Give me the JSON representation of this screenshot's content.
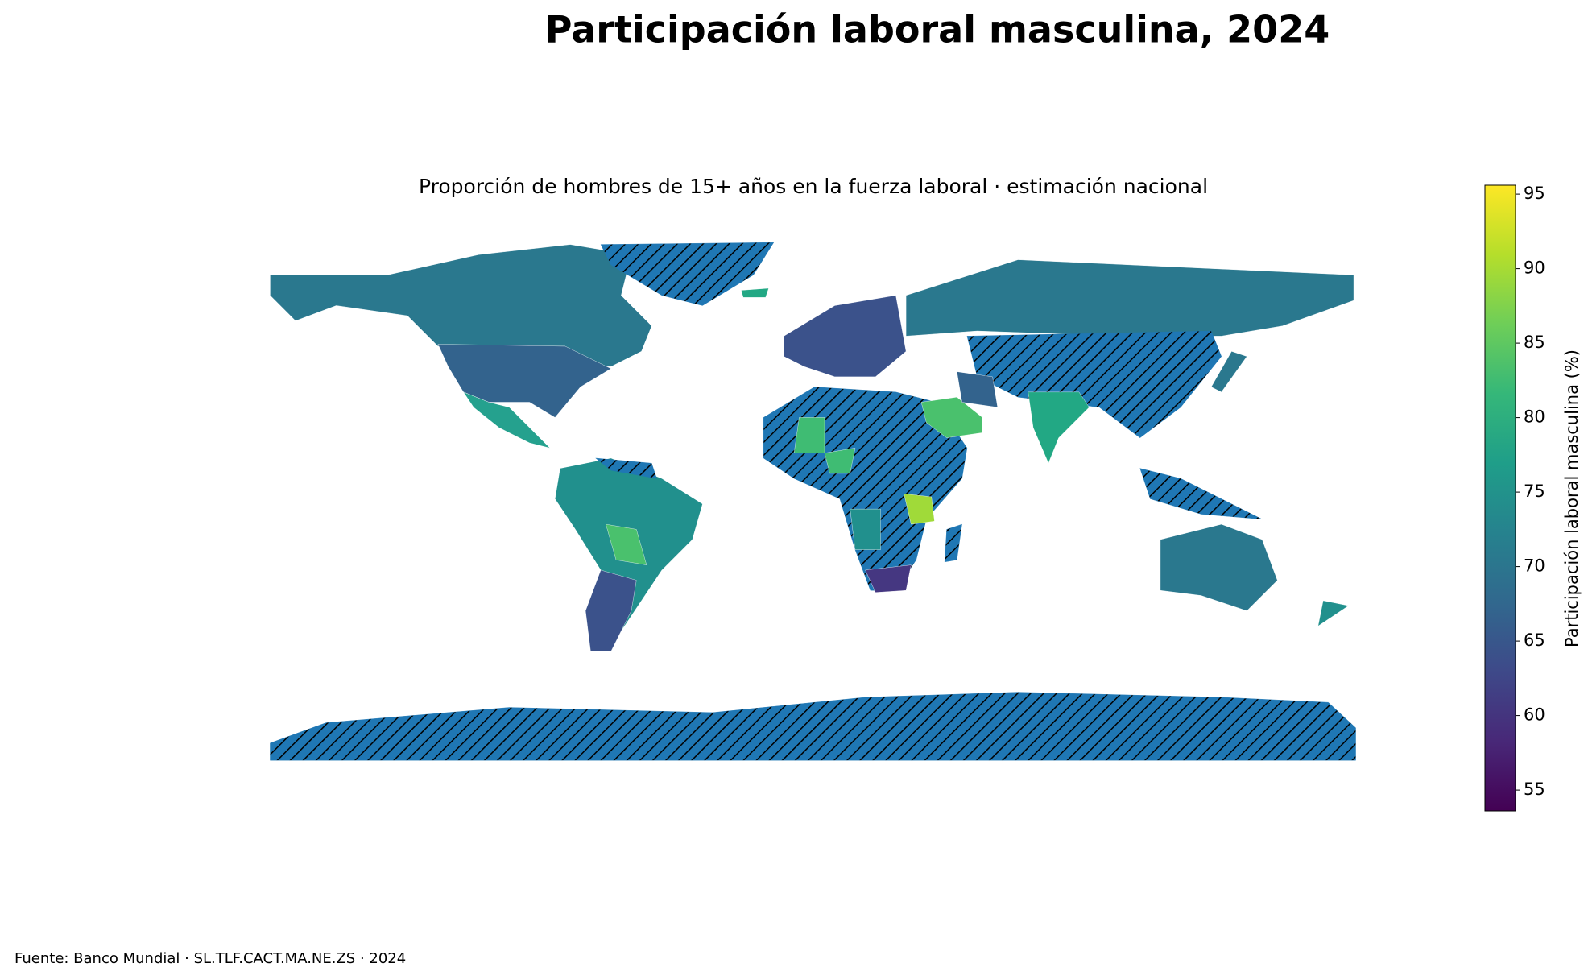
{
  "title": "Participación laboral masculina, 2024",
  "subtitle": "Proporción de hombres de 15+ años en la fuerza laboral · estimación nacional",
  "colorbar": {
    "label": "Participación laboral masculina (%)",
    "cmap": "viridis",
    "lim": [
      53.6,
      95.6
    ],
    "ticks": [
      55,
      60,
      65,
      70,
      75,
      80,
      85,
      90,
      95
    ]
  },
  "source": "Fuente: Banco Mundial · SL.TLF.CACT.MA.NE.ZS · 2024"
}
